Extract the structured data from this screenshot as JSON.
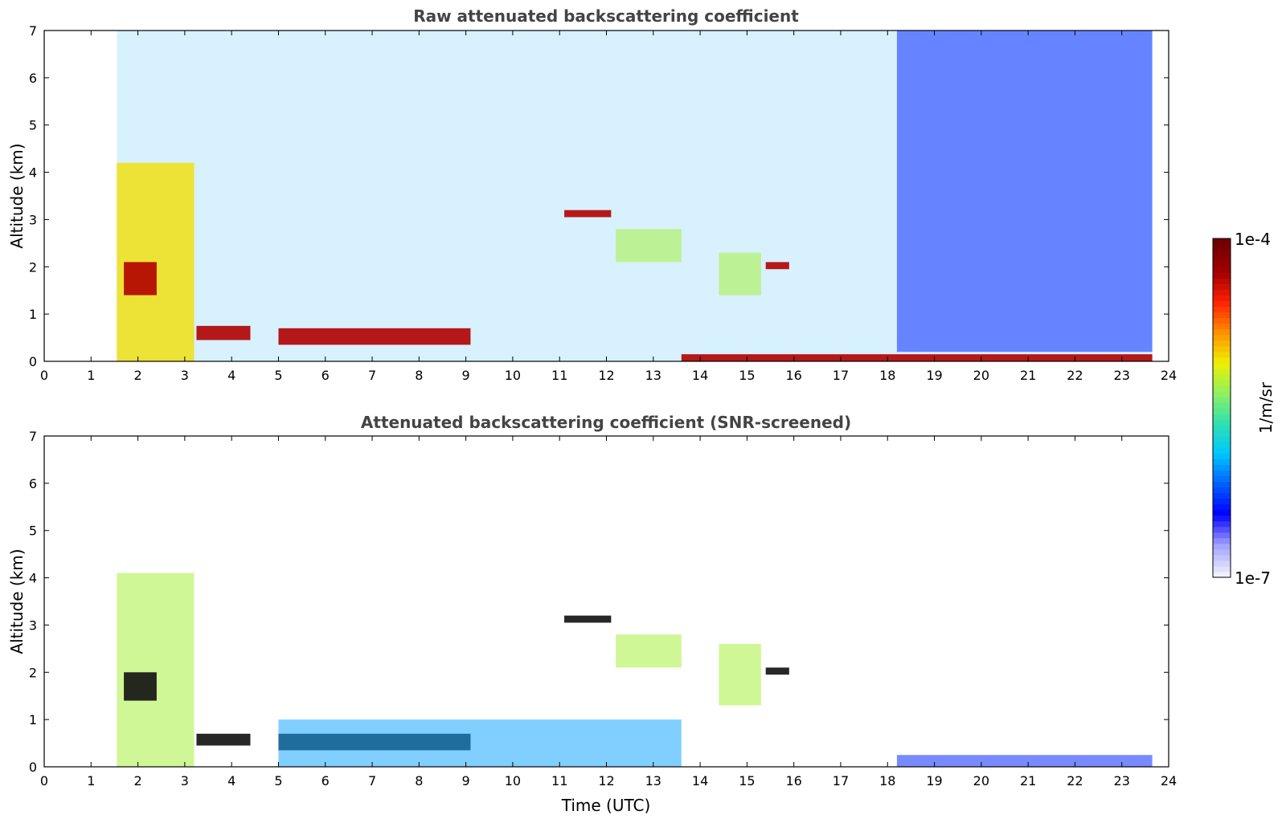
{
  "chart_data": [
    {
      "type": "heatmap",
      "title": "Raw attenuated backscattering coefficient",
      "xlabel": "",
      "ylabel": "Altitude (km)",
      "xlim": [
        0,
        24
      ],
      "ylim": [
        0,
        7
      ],
      "xticks": [
        "0",
        "1",
        "2",
        "3",
        "4",
        "5",
        "6",
        "7",
        "8",
        "9",
        "10",
        "11",
        "12",
        "13",
        "14",
        "15",
        "16",
        "17",
        "18",
        "19",
        "20",
        "21",
        "22",
        "23",
        "24"
      ],
      "yticks": [
        "0",
        "1",
        "2",
        "3",
        "4",
        "5",
        "6",
        "7"
      ],
      "data_coverage_hours": [
        1.55,
        23.65
      ],
      "scale": "log",
      "regions": [
        {
          "feature": "low-level aerosol/boundary layer",
          "x": [
            1.55,
            3.2
          ],
          "y": [
            0,
            4.2
          ],
          "level": "medium-high"
        },
        {
          "feature": "cloud layer",
          "x": [
            1.7,
            2.4
          ],
          "y": [
            1.4,
            2.1
          ],
          "level": "high"
        },
        {
          "feature": "cloud layer",
          "x": [
            3.25,
            4.4
          ],
          "y": [
            0.45,
            0.75
          ],
          "level": "high"
        },
        {
          "feature": "stratocumulus top",
          "x": [
            5.0,
            9.1
          ],
          "y": [
            0.35,
            0.7
          ],
          "level": "high"
        },
        {
          "feature": "mid-level cloud",
          "x": [
            11.1,
            12.1
          ],
          "y": [
            3.05,
            3.2
          ],
          "level": "high"
        },
        {
          "feature": "aerosol layer",
          "x": [
            12.2,
            13.6
          ],
          "y": [
            2.1,
            2.8
          ],
          "level": "medium"
        },
        {
          "feature": "aerosol layer",
          "x": [
            14.4,
            15.3
          ],
          "y": [
            1.4,
            2.3
          ],
          "level": "medium"
        },
        {
          "feature": "cloud layer",
          "x": [
            15.4,
            15.9
          ],
          "y": [
            1.95,
            2.1
          ],
          "level": "high"
        },
        {
          "feature": "near-surface layer",
          "x": [
            13.6,
            23.65
          ],
          "y": [
            0,
            0.15
          ],
          "level": "high"
        },
        {
          "feature": "clean/noisy background",
          "x": [
            18.2,
            23.65
          ],
          "y": [
            0.2,
            7
          ],
          "level": "low"
        }
      ]
    },
    {
      "type": "heatmap",
      "title": "Attenuated backscattering coefficient (SNR-screened)",
      "xlabel": "Time (UTC)",
      "ylabel": "Altitude (km)",
      "xlim": [
        0,
        24
      ],
      "ylim": [
        0,
        7
      ],
      "xticks": [
        "0",
        "1",
        "2",
        "3",
        "4",
        "5",
        "6",
        "7",
        "8",
        "9",
        "10",
        "11",
        "12",
        "13",
        "14",
        "15",
        "16",
        "17",
        "18",
        "19",
        "20",
        "21",
        "22",
        "23",
        "24"
      ],
      "yticks": [
        "0",
        "1",
        "2",
        "3",
        "4",
        "5",
        "6",
        "7"
      ],
      "data_coverage_hours": [
        1.55,
        23.65
      ],
      "scale": "log",
      "regions": [
        {
          "feature": "boundary layer aerosol",
          "x": [
            1.55,
            3.2
          ],
          "y": [
            0,
            4.1
          ],
          "level": "medium"
        },
        {
          "feature": "cloud layer",
          "x": [
            1.7,
            2.4
          ],
          "y": [
            1.4,
            2.0
          ],
          "level": "saturated"
        },
        {
          "feature": "cloud layer",
          "x": [
            3.25,
            4.4
          ],
          "y": [
            0.45,
            0.7
          ],
          "level": "saturated"
        },
        {
          "feature": "stratocumulus top",
          "x": [
            5.0,
            9.1
          ],
          "y": [
            0.35,
            0.7
          ],
          "level": "saturated"
        },
        {
          "feature": "boundary layer",
          "x": [
            5.0,
            13.6
          ],
          "y": [
            0,
            1.0
          ],
          "level": "low-medium"
        },
        {
          "feature": "mid-level cloud",
          "x": [
            11.1,
            12.1
          ],
          "y": [
            3.05,
            3.2
          ],
          "level": "saturated"
        },
        {
          "feature": "aerosol layer",
          "x": [
            12.2,
            13.6
          ],
          "y": [
            2.1,
            2.8
          ],
          "level": "medium"
        },
        {
          "feature": "aerosol layer",
          "x": [
            14.4,
            15.3
          ],
          "y": [
            1.3,
            2.6
          ],
          "level": "medium"
        },
        {
          "feature": "cloud layer",
          "x": [
            15.4,
            15.9
          ],
          "y": [
            1.95,
            2.1
          ],
          "level": "saturated"
        },
        {
          "feature": "near-surface layer",
          "x": [
            18.2,
            23.65
          ],
          "y": [
            0,
            0.25
          ],
          "level": "low"
        }
      ]
    }
  ],
  "colorbar": {
    "label": "1/m/sr",
    "max_label": "1e-4",
    "min_label": "1e-7",
    "scale": "log",
    "colormap": [
      "#f0f0ff",
      "#a0a0ff",
      "#0000ff",
      "#0060ff",
      "#00c8ff",
      "#30e0b0",
      "#90f060",
      "#f0f000",
      "#ff9000",
      "#ff2000",
      "#a00000",
      "#700000"
    ]
  }
}
